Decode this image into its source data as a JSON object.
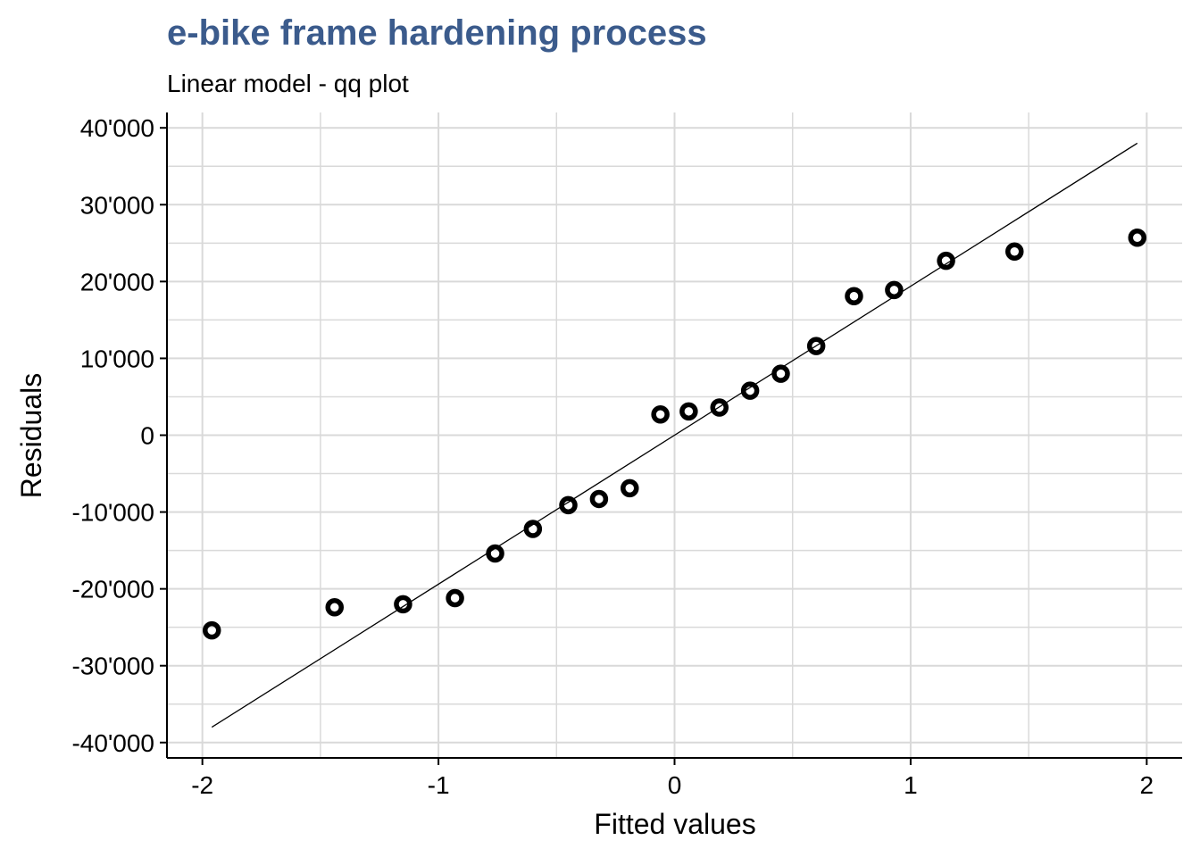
{
  "chart_data": {
    "type": "scatter",
    "title": "e-bike frame hardening process",
    "subtitle": "Linear model - qq plot",
    "xlabel": "Fitted values",
    "ylabel": "Residuals",
    "xlim": [
      -2.15,
      2.15
    ],
    "ylim": [
      -42000,
      42000
    ],
    "x_ticks": [
      -2,
      -1,
      0,
      1,
      2
    ],
    "x_tick_labels": [
      "-2",
      "-1",
      "0",
      "1",
      "2"
    ],
    "y_ticks": [
      -40000,
      -30000,
      -20000,
      -10000,
      0,
      10000,
      20000,
      30000,
      40000
    ],
    "y_tick_labels": [
      "-40'000",
      "-30'000",
      "-20'000",
      "-10'000",
      "0",
      "10'000",
      "20'000",
      "30'000",
      "40'000"
    ],
    "grid": true,
    "reference_line": {
      "x": [
        -1.96,
        1.96
      ],
      "y": [
        -38000,
        38000
      ]
    },
    "points": [
      {
        "x": -1.96,
        "y": -25400
      },
      {
        "x": -1.44,
        "y": -22400
      },
      {
        "x": -1.15,
        "y": -22000
      },
      {
        "x": -0.93,
        "y": -21200
      },
      {
        "x": -0.76,
        "y": -15400
      },
      {
        "x": -0.6,
        "y": -12200
      },
      {
        "x": -0.45,
        "y": -9100
      },
      {
        "x": -0.32,
        "y": -8300
      },
      {
        "x": -0.19,
        "y": -6900
      },
      {
        "x": -0.06,
        "y": 2700
      },
      {
        "x": 0.06,
        "y": 3100
      },
      {
        "x": 0.19,
        "y": 3600
      },
      {
        "x": 0.32,
        "y": 5800
      },
      {
        "x": 0.45,
        "y": 8000
      },
      {
        "x": 0.6,
        "y": 11600
      },
      {
        "x": 0.76,
        "y": 18100
      },
      {
        "x": 0.93,
        "y": 18900
      },
      {
        "x": 1.15,
        "y": 22700
      },
      {
        "x": 1.44,
        "y": 23900
      },
      {
        "x": 1.96,
        "y": 25700
      }
    ],
    "colors": {
      "title": "#3b5b8c",
      "grid": "#d9d9d9",
      "points": "#000000"
    }
  }
}
